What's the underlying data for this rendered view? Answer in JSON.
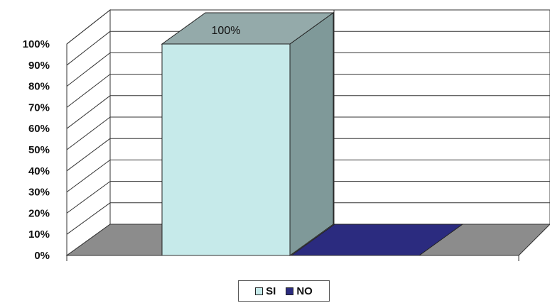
{
  "chart_data": {
    "type": "bar",
    "three_d": true,
    "categories": [
      ""
    ],
    "series": [
      {
        "name": "SI",
        "values": [
          100
        ],
        "color": "#c6eaea",
        "side_color": "#7f9999",
        "top_color": "#94aaaa"
      },
      {
        "name": "NO",
        "values": [
          0
        ],
        "color": "#2b2b7f",
        "side_color": "#1b1b5a",
        "top_color": "#2b2b7f"
      }
    ],
    "data_labels": [
      "100%"
    ],
    "yticks": [
      "0%",
      "10%",
      "20%",
      "30%",
      "40%",
      "50%",
      "60%",
      "70%",
      "80%",
      "90%",
      "100%"
    ],
    "ylim": [
      0,
      100
    ],
    "grid": true,
    "legend_position": "bottom",
    "floor_color": "#8c8c8c",
    "title": "",
    "xlabel": "",
    "ylabel": ""
  }
}
